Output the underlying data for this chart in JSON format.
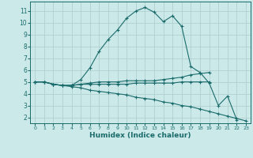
{
  "title": "",
  "xlabel": "Humidex (Indice chaleur)",
  "bg_color": "#cce9e9",
  "grid_color": "#b0d0d0",
  "line_color": "#1a6b6b",
  "xlim": [
    -0.5,
    23.5
  ],
  "ylim": [
    1.5,
    11.8
  ],
  "xticks": [
    0,
    1,
    2,
    3,
    4,
    5,
    6,
    7,
    8,
    9,
    10,
    11,
    12,
    13,
    14,
    15,
    16,
    17,
    18,
    19,
    20,
    21,
    22,
    23
  ],
  "yticks": [
    2,
    3,
    4,
    5,
    6,
    7,
    8,
    9,
    10,
    11
  ],
  "lines": [
    {
      "x": [
        0,
        1,
        2,
        3,
        4,
        5,
        6,
        7,
        8,
        9,
        10,
        11,
        12,
        13,
        14,
        15,
        16,
        17,
        18,
        19,
        20,
        21,
        22
      ],
      "y": [
        5.0,
        5.0,
        4.8,
        4.7,
        4.7,
        5.2,
        6.2,
        7.6,
        8.6,
        9.4,
        10.4,
        11.0,
        11.3,
        10.9,
        10.1,
        10.6,
        9.7,
        6.3,
        5.8,
        4.9,
        3.0,
        3.8,
        1.8
      ]
    },
    {
      "x": [
        0,
        1,
        2,
        3,
        4,
        5,
        6,
        7,
        8,
        9,
        10,
        11,
        12,
        13,
        14,
        15,
        16,
        17,
        18,
        19
      ],
      "y": [
        5.0,
        5.0,
        4.8,
        4.7,
        4.7,
        4.8,
        4.9,
        5.0,
        5.0,
        5.0,
        5.1,
        5.1,
        5.1,
        5.1,
        5.2,
        5.3,
        5.4,
        5.6,
        5.7,
        5.8
      ]
    },
    {
      "x": [
        0,
        1,
        2,
        3,
        4,
        5,
        6,
        7,
        8,
        9,
        10,
        11,
        12,
        13,
        14,
        15,
        16,
        17,
        18,
        19
      ],
      "y": [
        5.0,
        5.0,
        4.8,
        4.7,
        4.7,
        4.8,
        4.8,
        4.8,
        4.8,
        4.8,
        4.8,
        4.9,
        4.9,
        4.9,
        4.9,
        4.9,
        5.0,
        5.0,
        5.0,
        5.0
      ]
    },
    {
      "x": [
        0,
        1,
        2,
        3,
        4,
        5,
        6,
        7,
        8,
        9,
        10,
        11,
        12,
        13,
        14,
        15,
        16,
        17,
        18,
        19,
        20,
        21,
        22,
        23
      ],
      "y": [
        5.0,
        5.0,
        4.8,
        4.7,
        4.6,
        4.5,
        4.3,
        4.2,
        4.1,
        4.0,
        3.9,
        3.7,
        3.6,
        3.5,
        3.3,
        3.2,
        3.0,
        2.9,
        2.7,
        2.5,
        2.3,
        2.1,
        1.9,
        1.7
      ]
    }
  ]
}
